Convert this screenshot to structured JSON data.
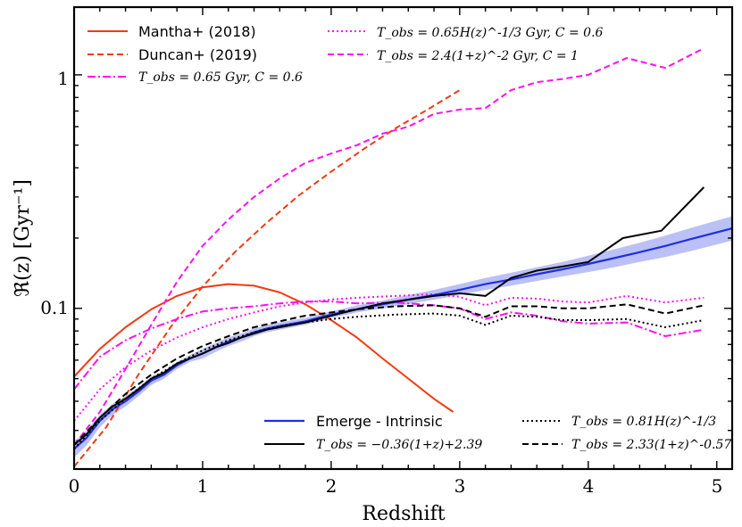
{
  "chart_data": {
    "type": "line",
    "title": "",
    "xlabel": "Redshift",
    "ylabel": "ℜ(z) [Gyr⁻¹]",
    "xscale": "linear",
    "yscale": "log",
    "xlim": [
      0,
      5.12
    ],
    "ylim": [
      0.0205,
      1.95
    ],
    "x_ticks": [
      0,
      1,
      2,
      3,
      4,
      5
    ],
    "x_tick_labels": [
      "0",
      "1",
      "2",
      "3",
      "4",
      "5"
    ],
    "y_ticks": [
      0.1,
      1
    ],
    "y_tick_labels": [
      "0.1",
      "1"
    ],
    "grid": false,
    "legend_top": [
      {
        "label": "Mantha+ (2018)",
        "series": "mantha"
      },
      {
        "label": "Duncan+ (2019)",
        "series": "duncan"
      },
      {
        "label": "T_obs = 0.65 Gyr, C = 0.6",
        "series": "tobs_const"
      },
      {
        "label": "T_obs = 0.65H(z)^-1/3 Gyr, C = 0.6",
        "series": "tobs_hz"
      },
      {
        "label": "T_obs = 2.4(1+z)^-2 Gyr, C = 1",
        "series": "tobs_pow"
      }
    ],
    "legend_bottom": [
      {
        "label": "Emerge - Intrinsic",
        "series": "emerge"
      },
      {
        "label": "T_obs = −0.36(1+z)+2.39",
        "series": "obs_lin"
      },
      {
        "label": "T_obs = 0.81H(z)^-1/3",
        "series": "obs_hz"
      },
      {
        "label": "T_obs = 2.33(1+z)^-0.57",
        "series": "obs_pow"
      }
    ],
    "series": [
      {
        "id": "mantha",
        "name": "Mantha+ (2018)",
        "color": "#f03c14",
        "dash": "solid",
        "x": [
          0,
          0.2,
          0.4,
          0.6,
          0.8,
          1.0,
          1.2,
          1.4,
          1.6,
          1.8,
          2.0,
          2.2,
          2.4,
          2.6,
          2.8,
          2.95
        ],
        "y": [
          0.051,
          0.067,
          0.083,
          0.099,
          0.113,
          0.123,
          0.127,
          0.125,
          0.117,
          0.104,
          0.089,
          0.075,
          0.061,
          0.05,
          0.041,
          0.036
        ]
      },
      {
        "id": "duncan",
        "name": "Duncan+ (2019)",
        "color": "#f03c14",
        "dash": "dashed",
        "x": [
          0,
          0.25,
          0.5,
          0.75,
          1.0,
          1.25,
          1.5,
          1.75,
          2.0,
          2.25,
          2.5,
          2.75,
          3.0
        ],
        "y": [
          0.021,
          0.031,
          0.052,
          0.083,
          0.124,
          0.174,
          0.233,
          0.305,
          0.385,
          0.48,
          0.59,
          0.71,
          0.86
        ]
      },
      {
        "id": "tobs_const",
        "name": "T_obs = 0.65 Gyr, C = 0.6",
        "color": "#ff10f0",
        "dash": "dashdot",
        "x": [
          0,
          0.2,
          0.4,
          0.6,
          0.8,
          1.0,
          1.2,
          1.4,
          1.6,
          1.8,
          2.0,
          2.2,
          2.5,
          2.8,
          3.0,
          3.2,
          3.4,
          3.6,
          3.8,
          4.0,
          4.3,
          4.6,
          4.9
        ],
        "y": [
          0.045,
          0.062,
          0.073,
          0.082,
          0.09,
          0.097,
          0.1,
          0.102,
          0.105,
          0.107,
          0.107,
          0.105,
          0.106,
          0.103,
          0.1,
          0.09,
          0.096,
          0.093,
          0.088,
          0.086,
          0.087,
          0.076,
          0.081
        ]
      },
      {
        "id": "tobs_hz",
        "name": "T_obs = 0.65H(z)^-1/3 Gyr, C = 0.6",
        "color": "#ff10f0",
        "dash": "dotted",
        "x": [
          0,
          0.2,
          0.4,
          0.6,
          0.8,
          1.0,
          1.2,
          1.4,
          1.6,
          1.8,
          2.0,
          2.2,
          2.5,
          2.8,
          3.0,
          3.2,
          3.4,
          3.6,
          3.8,
          4.0,
          4.3,
          4.6,
          4.9
        ],
        "y": [
          0.033,
          0.045,
          0.056,
          0.066,
          0.075,
          0.083,
          0.09,
          0.096,
          0.102,
          0.106,
          0.109,
          0.111,
          0.113,
          0.115,
          0.112,
          0.103,
          0.111,
          0.11,
          0.107,
          0.106,
          0.113,
          0.106,
          0.111
        ]
      },
      {
        "id": "tobs_pow",
        "name": "T_obs = 2.4(1+z)^-2 Gyr, C = 1",
        "color": "#ff10f0",
        "dash": "dashed",
        "x": [
          0,
          0.2,
          0.4,
          0.6,
          0.8,
          1.0,
          1.2,
          1.4,
          1.6,
          1.8,
          2.0,
          2.2,
          2.4,
          2.6,
          2.8,
          3.0,
          3.2,
          3.4,
          3.6,
          3.8,
          4.0,
          4.3,
          4.6,
          4.9
        ],
        "y": [
          0.026,
          0.036,
          0.055,
          0.085,
          0.13,
          0.185,
          0.24,
          0.3,
          0.36,
          0.42,
          0.46,
          0.5,
          0.56,
          0.6,
          0.68,
          0.71,
          0.72,
          0.86,
          0.93,
          0.96,
          1.0,
          1.18,
          1.07,
          1.3
        ]
      },
      {
        "id": "emerge",
        "name": "Emerge - Intrinsic",
        "color": "#1f2fe0",
        "dash": "solid",
        "x": [
          0,
          0.1,
          0.2,
          0.3,
          0.4,
          0.5,
          0.6,
          0.7,
          0.8,
          0.9,
          1.0,
          1.1,
          1.2,
          1.3,
          1.4,
          1.5,
          1.6,
          1.7,
          1.8,
          1.9,
          2.0,
          2.2,
          2.4,
          2.6,
          2.8,
          3.0,
          3.2,
          3.4,
          3.6,
          3.8,
          4.0,
          4.2,
          4.4,
          4.6,
          4.8,
          5.12
        ],
        "y": [
          0.025,
          0.028,
          0.033,
          0.037,
          0.04,
          0.044,
          0.049,
          0.052,
          0.057,
          0.061,
          0.064,
          0.068,
          0.072,
          0.075,
          0.079,
          0.082,
          0.084,
          0.086,
          0.088,
          0.091,
          0.094,
          0.099,
          0.104,
          0.109,
          0.114,
          0.12,
          0.127,
          0.133,
          0.14,
          0.147,
          0.155,
          0.164,
          0.174,
          0.185,
          0.198,
          0.22
        ],
        "band_low": [
          0.023,
          0.026,
          0.031,
          0.035,
          0.038,
          0.042,
          0.047,
          0.05,
          0.055,
          0.059,
          0.061,
          0.065,
          0.069,
          0.072,
          0.076,
          0.079,
          0.081,
          0.083,
          0.085,
          0.088,
          0.091,
          0.096,
          0.1,
          0.104,
          0.109,
          0.114,
          0.12,
          0.125,
          0.131,
          0.137,
          0.143,
          0.15,
          0.158,
          0.166,
          0.176,
          0.195
        ],
        "band_high": [
          0.027,
          0.03,
          0.035,
          0.039,
          0.042,
          0.046,
          0.051,
          0.054,
          0.059,
          0.063,
          0.067,
          0.071,
          0.075,
          0.078,
          0.082,
          0.085,
          0.087,
          0.089,
          0.091,
          0.094,
          0.097,
          0.103,
          0.108,
          0.114,
          0.12,
          0.127,
          0.135,
          0.142,
          0.15,
          0.158,
          0.168,
          0.179,
          0.191,
          0.205,
          0.221,
          0.248
        ]
      },
      {
        "id": "obs_lin",
        "name": "T_obs = −0.36(1+z)+2.39",
        "color": "#000000",
        "dash": "solid",
        "x": [
          0,
          0.1,
          0.2,
          0.3,
          0.4,
          0.5,
          0.6,
          0.7,
          0.8,
          0.9,
          1.0,
          1.1,
          1.2,
          1.3,
          1.4,
          1.5,
          1.6,
          1.7,
          1.8,
          1.9,
          2.0,
          2.2,
          2.4,
          2.6,
          2.8,
          3.0,
          3.2,
          3.4,
          3.6,
          3.8,
          4.0,
          4.27,
          4.57,
          4.9
        ],
        "y": [
          0.026,
          0.029,
          0.034,
          0.038,
          0.041,
          0.045,
          0.05,
          0.053,
          0.058,
          0.061,
          0.064,
          0.068,
          0.071,
          0.075,
          0.078,
          0.081,
          0.083,
          0.085,
          0.087,
          0.09,
          0.093,
          0.099,
          0.105,
          0.109,
          0.113,
          0.116,
          0.113,
          0.135,
          0.145,
          0.151,
          0.158,
          0.2,
          0.215,
          0.33
        ]
      },
      {
        "id": "obs_hz",
        "name": "T_obs = 0.81H(z)^-1/3",
        "color": "#000000",
        "dash": "dotted",
        "x": [
          0,
          0.2,
          0.4,
          0.6,
          0.8,
          1.0,
          1.2,
          1.4,
          1.6,
          1.8,
          2.0,
          2.2,
          2.5,
          2.8,
          3.0,
          3.2,
          3.4,
          3.6,
          3.8,
          4.0,
          4.3,
          4.6,
          4.9
        ],
        "y": [
          0.025,
          0.033,
          0.041,
          0.05,
          0.058,
          0.066,
          0.073,
          0.079,
          0.084,
          0.087,
          0.09,
          0.092,
          0.094,
          0.095,
          0.093,
          0.085,
          0.093,
          0.092,
          0.089,
          0.089,
          0.09,
          0.083,
          0.089
        ]
      },
      {
        "id": "obs_pow",
        "name": "T_obs = 2.33(1+z)^-0.57",
        "color": "#000000",
        "dash": "dashed",
        "x": [
          0,
          0.2,
          0.4,
          0.6,
          0.8,
          1.0,
          1.2,
          1.4,
          1.6,
          1.8,
          2.0,
          2.2,
          2.5,
          2.8,
          3.0,
          3.2,
          3.4,
          3.6,
          3.8,
          4.0,
          4.3,
          4.6,
          4.9
        ],
        "y": [
          0.026,
          0.034,
          0.043,
          0.052,
          0.061,
          0.069,
          0.076,
          0.083,
          0.088,
          0.093,
          0.096,
          0.099,
          0.102,
          0.103,
          0.1,
          0.092,
          0.102,
          0.102,
          0.1,
          0.1,
          0.104,
          0.095,
          0.103
        ]
      }
    ]
  }
}
